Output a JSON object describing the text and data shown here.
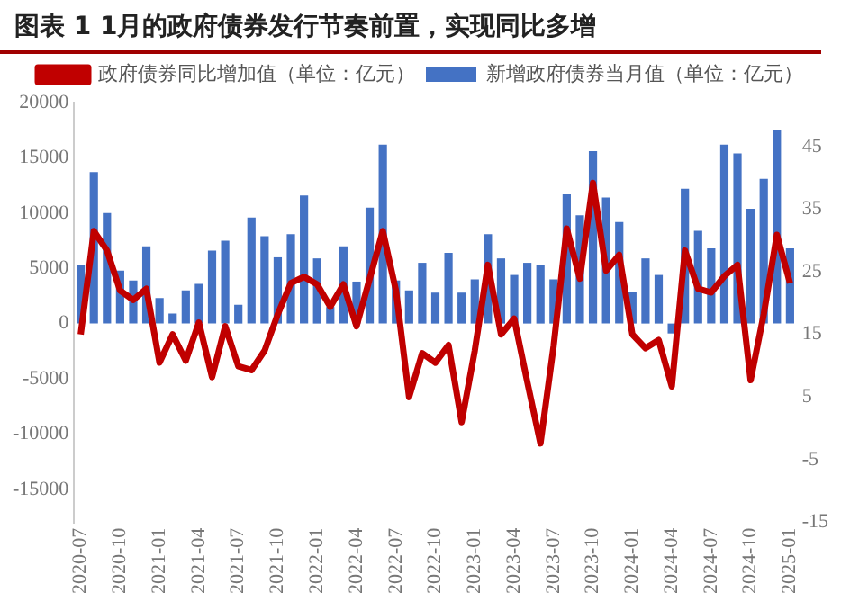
{
  "chart_data": {
    "type": "bar",
    "title": "图表 1 1月的政府债券发行节奏前置，实现同比多增",
    "categories": [
      "2020-07",
      null,
      null,
      "2020-10",
      null,
      null,
      "2021-01",
      null,
      null,
      "2021-04",
      null,
      null,
      "2021-07",
      null,
      null,
      "2021-10",
      null,
      null,
      "2022-01",
      null,
      null,
      "2022-04",
      null,
      null,
      "2022-07",
      null,
      null,
      "2022-10",
      null,
      null,
      "2023-01",
      null,
      null,
      "2023-04",
      null,
      null,
      "2023-07",
      null,
      null,
      "2023-10",
      null,
      null,
      "2024-01",
      null,
      null,
      "2024-04",
      null,
      null,
      "2024-07",
      null,
      null,
      "2024-10",
      null,
      null,
      "2025-01"
    ],
    "series": [
      {
        "name": "新增政府债券当月值（单位：亿元）",
        "color": "#4472c4",
        "values": [
          5300,
          13700,
          10000,
          4800,
          3900,
          7000,
          2300,
          900,
          3000,
          3600,
          6600,
          7500,
          1700,
          9600,
          7900,
          6000,
          8100,
          11600,
          5900,
          1500,
          7000,
          3800,
          10500,
          16200,
          3900,
          3000,
          5500,
          2800,
          6400,
          2800,
          4000,
          8100,
          5900,
          4400,
          5500,
          5300,
          4000,
          11700,
          9800,
          15600,
          11400,
          9200,
          2900,
          5900,
          4400,
          -900,
          12200,
          8400,
          6800,
          16200,
          15400,
          10400,
          13100,
          17500,
          6800
        ]
      },
      {
        "name": "政府债券同比增加值（单位：亿元）",
        "type": "line",
        "axis": "y2",
        "color": "#c00000",
        "values": [
          15,
          31.5,
          28.4,
          22,
          20.5,
          22.3,
          10.5,
          15,
          10.8,
          16.9,
          8.2,
          16.3,
          9.9,
          9.3,
          12.4,
          18.2,
          23.2,
          24.2,
          23,
          19.4,
          23,
          16.3,
          23.9,
          31.5,
          22,
          5,
          12,
          10.5,
          13.3,
          1,
          12.4,
          26.1,
          15,
          17.5,
          7.4,
          -2.4,
          13.1,
          31.9,
          23.9,
          39.2,
          25.2,
          27.7,
          15,
          12.8,
          14.1,
          6.7,
          28.4,
          22.3,
          21.7,
          24.3,
          26.1,
          7.7,
          18.2,
          30.9,
          23.2
        ]
      }
    ],
    "ylim": [
      -18000,
      20000
    ],
    "yticks": [
      -15000,
      -10000,
      -5000,
      0,
      5000,
      10000,
      15000,
      20000
    ],
    "y2lim": [
      -15,
      52
    ],
    "y2ticks": [
      -15,
      -5,
      5,
      15,
      25,
      35,
      45
    ],
    "grid": false,
    "legend": "top",
    "marker": "none",
    "line_style": "solid"
  }
}
